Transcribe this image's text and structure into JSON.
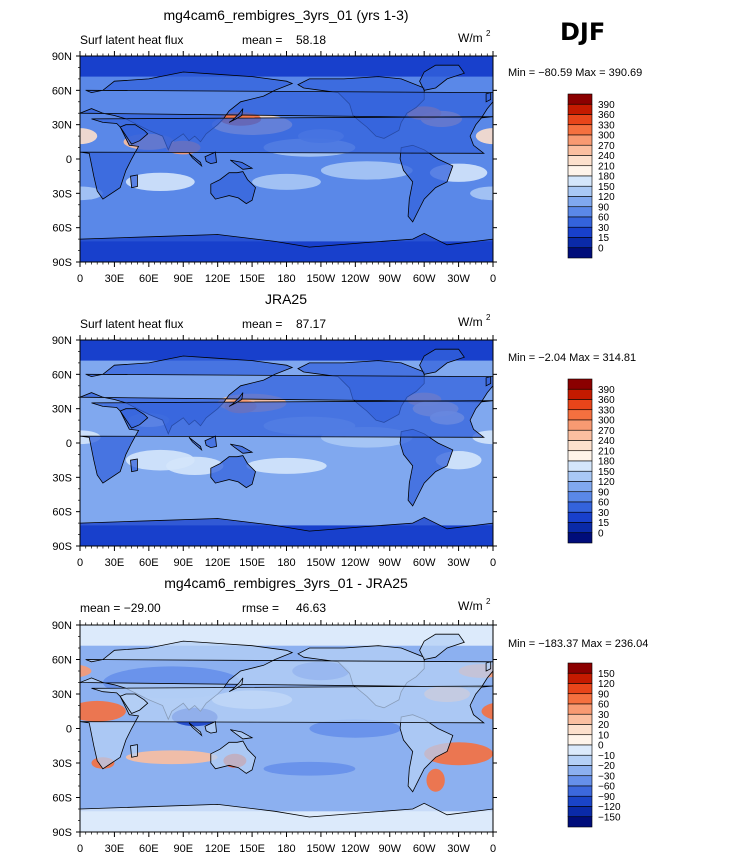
{
  "season": "DJF",
  "chart_data": [
    {
      "type": "heatmap",
      "title": "mg4cam6_rembigres_3yrs_01 (yrs 1-3)",
      "left_label": "Surf latent heat flux",
      "stat_label": "mean =",
      "stat_value": "58.18",
      "units": "W/m",
      "units_exp": "2",
      "minmax": "Min = −80.59 Max = 390.69",
      "colorbar_labels": [
        "390",
        "360",
        "330",
        "300",
        "270",
        "240",
        "210",
        "180",
        "150",
        "120",
        "90",
        "60",
        "30",
        "15",
        "0"
      ],
      "colorbar_colors": [
        "#8b0000",
        "#c41a00",
        "#e8451a",
        "#f5703f",
        "#f89a72",
        "#fbbfa0",
        "#fde0cc",
        "#fff4ea",
        "#d4e6fb",
        "#a9c8f5",
        "#80a8ef",
        "#5a88e8",
        "#3463dc",
        "#1840cc",
        "#0a2aa8",
        "#000d7a"
      ]
    },
    {
      "type": "heatmap",
      "title": "JRA25",
      "left_label": "Surf latent heat flux",
      "stat_label": "mean =",
      "stat_value": "87.17",
      "units": "W/m",
      "units_exp": "2",
      "minmax": "Min =  −2.04 Max = 314.81",
      "colorbar_labels": [
        "390",
        "360",
        "330",
        "300",
        "270",
        "240",
        "210",
        "180",
        "150",
        "120",
        "90",
        "60",
        "30",
        "15",
        "0"
      ],
      "colorbar_colors": [
        "#8b0000",
        "#c41a00",
        "#e8451a",
        "#f5703f",
        "#f89a72",
        "#fbbfa0",
        "#fde0cc",
        "#fff4ea",
        "#d4e6fb",
        "#a9c8f5",
        "#80a8ef",
        "#5a88e8",
        "#3463dc",
        "#1840cc",
        "#0a2aa8",
        "#000d7a"
      ]
    },
    {
      "type": "heatmap",
      "title": "mg4cam6_rembigres_3yrs_01 - JRA25",
      "left_label": "mean = −29.00",
      "stat_label": "rmse =",
      "stat_value": "46.63",
      "units": "W/m",
      "units_exp": "2",
      "minmax": "Min = −183.37 Max = 236.04",
      "colorbar_labels": [
        "150",
        "120",
        "90",
        "60",
        "30",
        "20",
        "10",
        "0",
        "−10",
        "−20",
        "−30",
        "−60",
        "−90",
        "−120",
        "−150"
      ],
      "colorbar_colors": [
        "#8b0000",
        "#c41a00",
        "#e8451a",
        "#f5703f",
        "#f89a72",
        "#fbbfa0",
        "#fde0cc",
        "#fff4ea",
        "#dceafb",
        "#b5d0f6",
        "#8cb0f0",
        "#6690ea",
        "#3c68dd",
        "#1a44c8",
        "#0a2aa8",
        "#000d7a"
      ]
    }
  ],
  "axes": {
    "lat_ticks": [
      "90N",
      "60N",
      "30N",
      "0",
      "30S",
      "60S",
      "90S"
    ],
    "lon_ticks": [
      "0",
      "30E",
      "60E",
      "90E",
      "120E",
      "150E",
      "180",
      "150W",
      "120W",
      "90W",
      "60W",
      "30W",
      "0"
    ]
  }
}
